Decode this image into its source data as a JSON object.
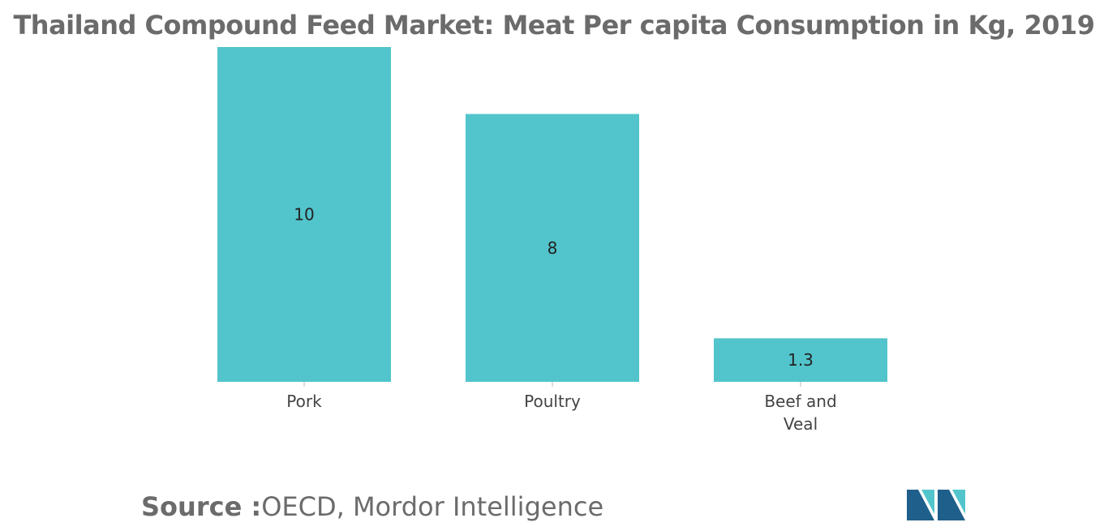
{
  "chart_data": {
    "type": "bar",
    "title": "Thailand Compound Feed Market: Meat Per capita Consumption in Kg, 2019",
    "categories": [
      "Pork",
      "Poultry",
      "Beef and Veal"
    ],
    "category_lines": [
      [
        "Pork"
      ],
      [
        "Poultry"
      ],
      [
        "Beef and",
        "Veal"
      ]
    ],
    "values": [
      10,
      8,
      1.3
    ],
    "value_labels": [
      "10",
      "8",
      "1.3"
    ],
    "xlabel": "",
    "ylabel": "",
    "ylim": [
      0,
      10
    ],
    "grid": false,
    "bar_color": "#52c4cb"
  },
  "source": {
    "label": "Source :",
    "text": "OECD, Mordor Intelligence"
  },
  "logo": {
    "icon": "mordor-intelligence-logo",
    "colors": [
      "#1f5f8b",
      "#52c4cb"
    ]
  }
}
